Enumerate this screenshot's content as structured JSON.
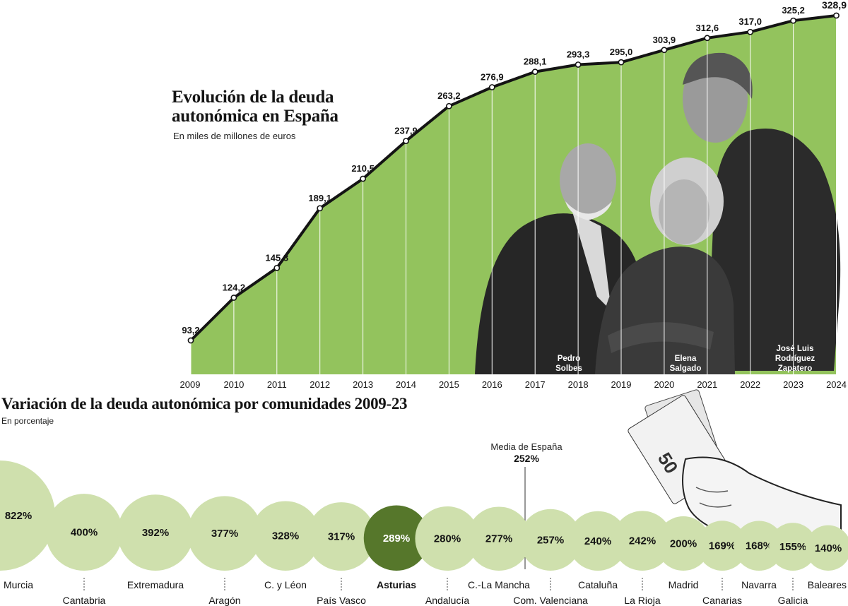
{
  "colors": {
    "area_fill": "#93c35d",
    "line": "#141414",
    "bubble": "#cfe0ad",
    "bubble_highlight": "#56772b",
    "text_dark": "#141414"
  },
  "line_chart": {
    "title": "Evolución de la deuda autonómica en España",
    "subtitle": "En miles de millones de euros"
  },
  "bubble_chart": {
    "title": "Variación de la deuda autonómica por comunidades 2009-23",
    "subtitle": "En porcentaje",
    "reference_label": "Media de España",
    "reference_value_label": "252%"
  },
  "photos": {
    "people": [
      "Pedro Solbes",
      "Elena Salgado",
      "José Luis Rodríguez Zapatero"
    ],
    "caption_solbes": [
      "Pedro",
      "Solbes"
    ],
    "caption_salgado": [
      "Elena",
      "Salgado"
    ],
    "caption_zapatero": [
      "José Luis",
      "Rodríguez",
      "Zapatero"
    ]
  },
  "chart_data": [
    {
      "type": "area",
      "title": "Evolución de la deuda autonómica en España",
      "subtitle": "En miles de millones de euros",
      "x": [
        "2009",
        "2010",
        "2011",
        "2012",
        "2013",
        "2014",
        "2015",
        "2016",
        "2017",
        "2018",
        "2019",
        "2020",
        "2021",
        "2022",
        "2023",
        "2024"
      ],
      "values": [
        93.2,
        124.2,
        145.8,
        189.1,
        210.5,
        237.9,
        263.2,
        276.9,
        288.1,
        293.3,
        295.0,
        303.9,
        312.6,
        317.0,
        325.2,
        328.9
      ],
      "labels": [
        "93,2",
        "124,2",
        "145,8",
        "189,1",
        "210,5",
        "237,9",
        "263,2",
        "276,9",
        "288,1",
        "293,3",
        "295,0",
        "303,9",
        "312,6",
        "317,0",
        "325,2",
        "328,9"
      ],
      "unit": "miles de millones de euros"
    },
    {
      "type": "bubble",
      "title": "Variación de la deuda autonómica por comunidades 2009-23",
      "subtitle": "En porcentaje",
      "categories": [
        "Murcia",
        "Cantabria",
        "Extremadura",
        "Aragón",
        "C. y Léon",
        "País Vasco",
        "Asturias",
        "Andalucía",
        "C.-La Mancha",
        "Com. Valenciana",
        "Cataluña",
        "La Rioja",
        "Madrid",
        "Canarias",
        "Navarra",
        "Galicia",
        "Baleares"
      ],
      "values": [
        822,
        400,
        392,
        377,
        328,
        317,
        289,
        280,
        277,
        257,
        240,
        242,
        200,
        169,
        168,
        155,
        140
      ],
      "labels": [
        "822%",
        "400%",
        "392%",
        "377%",
        "328%",
        "317%",
        "289%",
        "280%",
        "277%",
        "257%",
        "240%",
        "242%",
        "200%",
        "169%",
        "168%",
        "155%",
        "140%"
      ],
      "highlight": "Asturias",
      "reference": {
        "label": "Media de España",
        "value": 252,
        "value_label": "252%"
      },
      "unit": "%"
    }
  ]
}
